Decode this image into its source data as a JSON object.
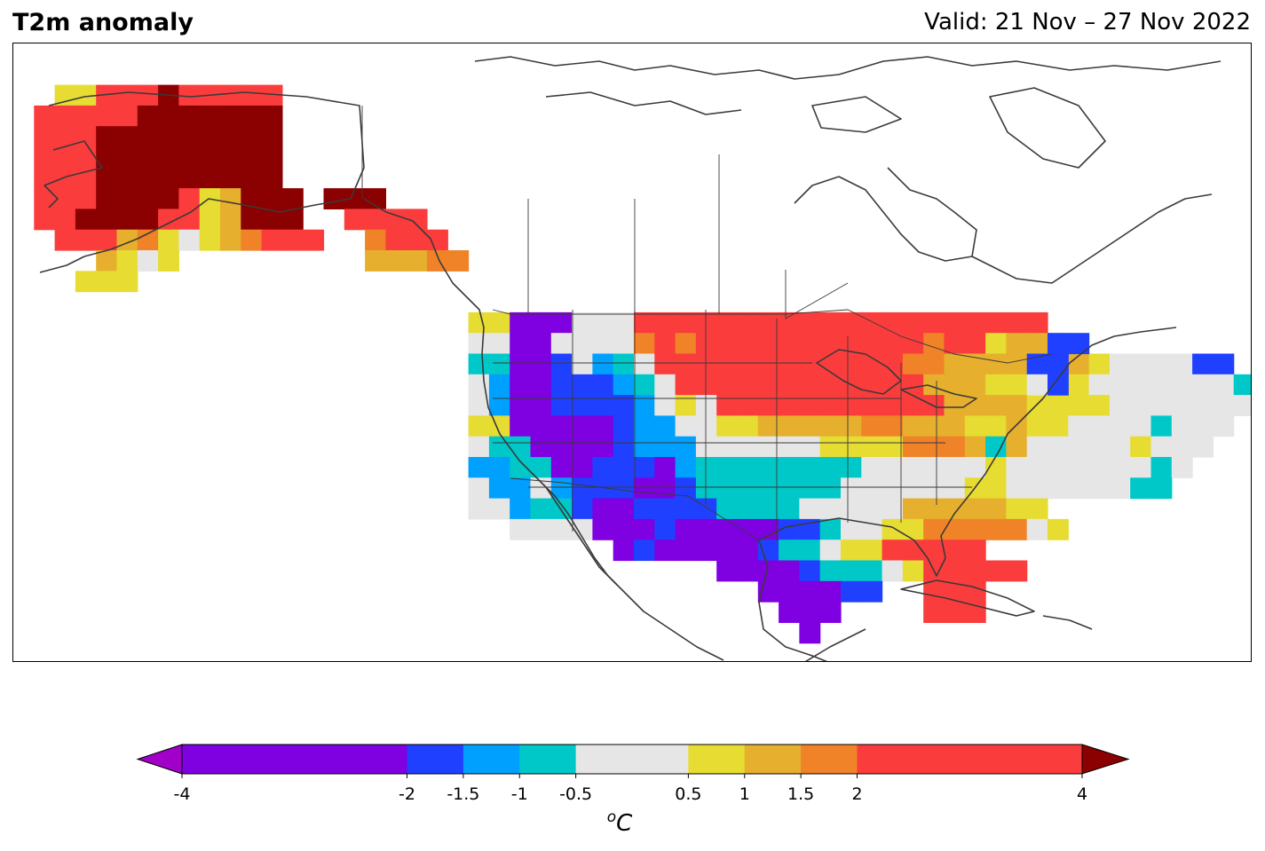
{
  "header": {
    "title": "T2m anomaly",
    "valid": "Valid: 21 Nov – 27 Nov 2022"
  },
  "colorbar": {
    "unit_sup": "o",
    "unit": "C",
    "levels": [
      -4,
      -2,
      -1.5,
      -1,
      -0.5,
      0.5,
      1,
      1.5,
      2,
      4
    ],
    "tick_labels": [
      "-4",
      "-2",
      "-1.5",
      "-1",
      "-0.5",
      "0.5",
      "1",
      "1.5",
      "2",
      "4"
    ],
    "bin_colors": [
      "#7f00e0",
      "#2040ff",
      "#00a0ff",
      "#00c8c8",
      "#e6e6e6",
      "#e6dc32",
      "#e6af2d",
      "#f08228",
      "#fa3c3c"
    ],
    "under_color": "#a000c8",
    "over_color": "#8b0000"
  },
  "map": {
    "projection": "North America (lat/lon grid)",
    "coastline_color": "#3a3a3a",
    "anomaly_cells_note": "Gridded anomaly field: strong warm (red) over Alaska and northern Plains/Upper Midwest, warm Southeast/Florida, cold (purple/blue) over Southwest and Texas, cold New England tip."
  }
}
